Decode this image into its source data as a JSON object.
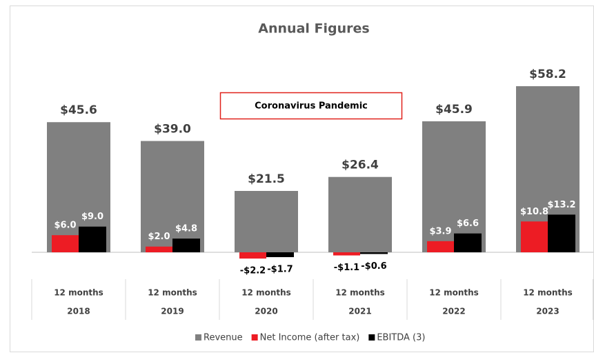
{
  "chart_data": {
    "type": "bar",
    "title": "Annual Figures",
    "annotation": "Coronavirus Pandemic",
    "categories": [
      "2018",
      "2019",
      "2020",
      "2021",
      "2022",
      "2023"
    ],
    "period_labels": [
      "12 months",
      "12 months",
      "12 months",
      "12 months",
      "12 months",
      "12 months"
    ],
    "series": [
      {
        "name": "Revenue",
        "color": "#808080",
        "values": [
          45.6,
          39.0,
          21.5,
          26.4,
          45.9,
          58.2
        ],
        "value_labels": [
          "$45.6",
          "$39.0",
          "$21.5",
          "$26.4",
          "$45.9",
          "$58.2"
        ]
      },
      {
        "name": "Net Income (after tax)",
        "color": "#ed1c24",
        "values": [
          6.0,
          2.0,
          -2.2,
          -1.1,
          3.9,
          10.8
        ],
        "value_labels": [
          "$6.0",
          "$2.0",
          "-$2.2",
          "-$1.1",
          "$3.9",
          "$10.8"
        ]
      },
      {
        "name": "EBITDA (3)",
        "color": "#000000",
        "values": [
          9.0,
          4.8,
          -1.7,
          -0.6,
          6.6,
          13.2
        ],
        "value_labels": [
          "$9.0",
          "$4.8",
          "-$1.7",
          "-$0.6",
          "$6.6",
          "$13.2"
        ]
      }
    ],
    "ylim": [
      -10,
      60
    ],
    "legend": "bottom"
  }
}
